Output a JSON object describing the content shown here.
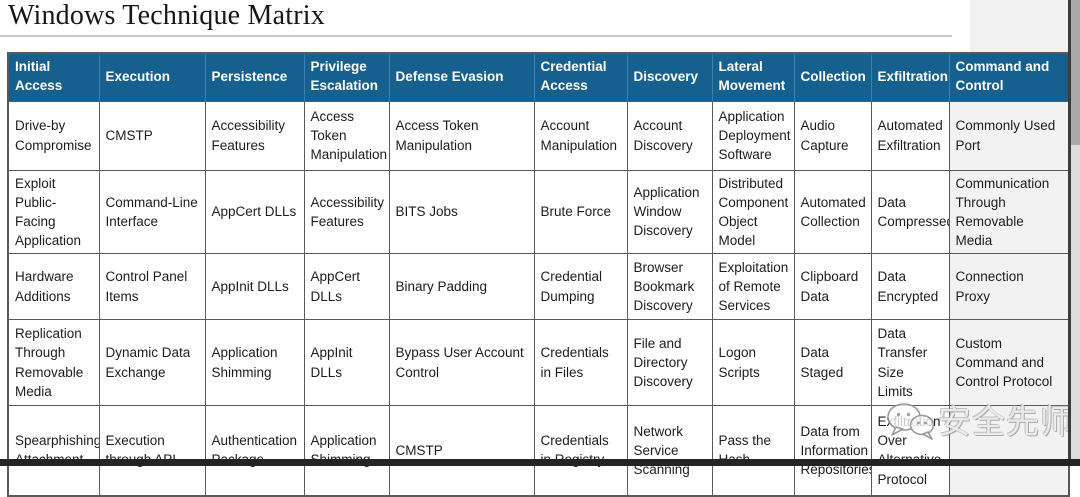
{
  "page": {
    "title": "Windows Technique Matrix"
  },
  "table": {
    "columns": [
      "Initial Access",
      "Execution",
      "Persistence",
      "Privilege Escalation",
      "Defense Evasion",
      "Credential Access",
      "Discovery",
      "Lateral Movement",
      "Collection",
      "Exfiltration",
      "Command and Control"
    ],
    "rows": [
      [
        "Drive-by Compromise",
        "CMSTP",
        "Accessibility Features",
        "Access Token Manipulation",
        "Access Token Manipulation",
        "Account Manipulation",
        "Account Discovery",
        "Application Deployment Software",
        "Audio Capture",
        "Automated Exfiltration",
        "Commonly Used Port"
      ],
      [
        "Exploit Public-Facing Application",
        "Command-Line Interface",
        "AppCert DLLs",
        "Accessibility Features",
        "BITS Jobs",
        "Brute Force",
        "Application Window Discovery",
        "Distributed Component Object Model",
        "Automated Collection",
        "Data Compressed",
        "Communication Through Removable Media"
      ],
      [
        "Hardware Additions",
        "Control Panel Items",
        "AppInit DLLs",
        "AppCert DLLs",
        "Binary Padding",
        "Credential Dumping",
        "Browser Bookmark Discovery",
        "Exploitation of Remote Services",
        "Clipboard Data",
        "Data Encrypted",
        "Connection Proxy"
      ],
      [
        "Replication Through Removable Media",
        "Dynamic Data Exchange",
        "Application Shimming",
        "AppInit DLLs",
        "Bypass User Account Control",
        "Credentials in Files",
        "File and Directory Discovery",
        "Logon Scripts",
        "Data Staged",
        "Data Transfer Size Limits",
        "Custom Command and Control Protocol"
      ],
      [
        "Spearphishing Attachment",
        "Execution through API",
        "Authentication Package",
        "Application Shimming",
        "CMSTP",
        "Credentials in Registry",
        "Network Service Scanning",
        "Pass the Hash",
        "Data from Information Repositories",
        "Exfiltration Over Alternative Protocol",
        ""
      ]
    ]
  },
  "watermark": {
    "icon": "wechat-icon",
    "text": "安全先师"
  },
  "colors": {
    "header_bg": "#15608f",
    "header_text": "#ffffff",
    "cell_border": "#595959",
    "last_column_bg": "#f2f2f2",
    "title_text": "#161616"
  }
}
